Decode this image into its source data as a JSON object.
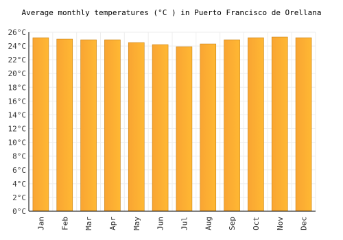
{
  "chart_data": {
    "type": "bar",
    "title": "Average monthly temperatures (°C ) in Puerto Francisco de Orellana",
    "categories": [
      "Jan",
      "Feb",
      "Mar",
      "Apr",
      "May",
      "Jun",
      "Jul",
      "Aug",
      "Sep",
      "Oct",
      "Nov",
      "Dec"
    ],
    "values": [
      25.2,
      25.0,
      24.9,
      24.9,
      24.5,
      24.2,
      23.9,
      24.3,
      24.9,
      25.2,
      25.3,
      25.2
    ],
    "color": "#f9a533",
    "ylim": [
      0,
      26
    ],
    "yticks": [
      {
        "value": 0,
        "label": "0°C"
      },
      {
        "value": 2,
        "label": "2°C"
      },
      {
        "value": 4,
        "label": "4°C"
      },
      {
        "value": 6,
        "label": "6°C"
      },
      {
        "value": 8,
        "label": "8°C"
      },
      {
        "value": 10,
        "label": "10°C"
      },
      {
        "value": 12,
        "label": "12°C"
      },
      {
        "value": 14,
        "label": "14°C"
      },
      {
        "value": 16,
        "label": "16°C"
      },
      {
        "value": 18,
        "label": "18°C"
      },
      {
        "value": 20,
        "label": "20°C"
      },
      {
        "value": 22,
        "label": "22°C"
      },
      {
        "value": 24,
        "label": "24°C"
      },
      {
        "value": 26,
        "label": "26°C"
      }
    ],
    "grid": true
  }
}
